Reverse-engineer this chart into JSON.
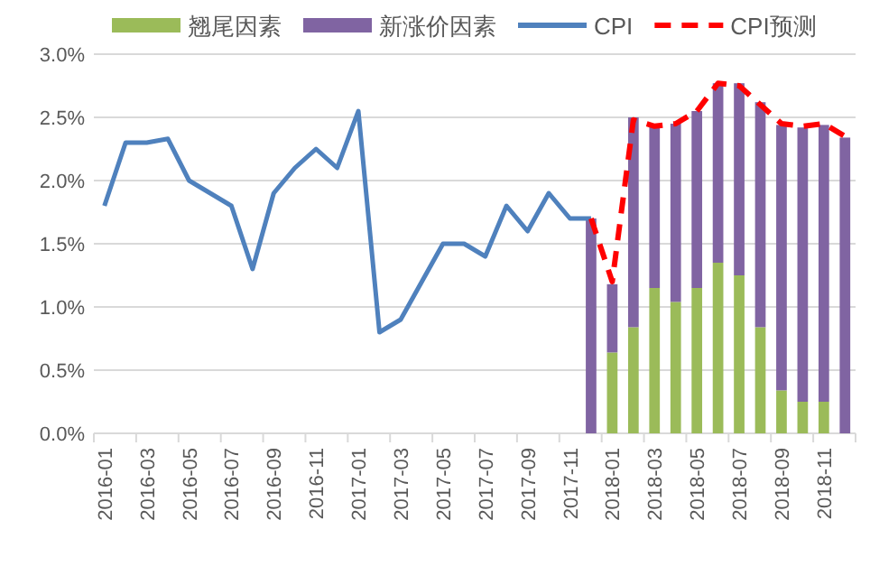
{
  "chart_data": {
    "type": "bar",
    "stacked": true,
    "grid": "y",
    "legend": "top",
    "marker": "none",
    "categories": [
      "2016-01",
      null,
      "2016-03",
      null,
      "2016-05",
      null,
      "2016-07",
      null,
      "2016-09",
      null,
      "2016-11",
      null,
      "2017-01",
      null,
      "2017-03",
      null,
      "2017-05",
      null,
      "2017-07",
      null,
      "2017-09",
      null,
      "2017-11",
      null,
      "2018-01",
      null,
      "2018-03",
      null,
      "2018-05",
      null,
      "2018-07",
      null,
      "2018-09",
      null,
      "2018-11",
      null
    ],
    "ylim": [
      0,
      3
    ],
    "yticks": [
      {
        "value": 0,
        "label": "0.0%"
      },
      {
        "value": 0.5,
        "label": "0.5%"
      },
      {
        "value": 1,
        "label": "1.0%"
      },
      {
        "value": 1.5,
        "label": "1.5%"
      },
      {
        "value": 2,
        "label": "2.0%"
      },
      {
        "value": 2.5,
        "label": "2.5%"
      },
      {
        "value": 3,
        "label": "3.0%"
      }
    ],
    "series": [
      {
        "name": "翘尾因素",
        "color": "#9bbb59",
        "values": [
          null,
          null,
          null,
          null,
          null,
          null,
          null,
          null,
          null,
          null,
          null,
          null,
          null,
          null,
          null,
          null,
          null,
          null,
          null,
          null,
          null,
          null,
          null,
          0,
          0.64,
          0.84,
          1.15,
          1.04,
          1.15,
          1.35,
          1.25,
          0.84,
          0.34,
          0.25,
          0.25,
          0
        ]
      },
      {
        "name": "新涨价因素",
        "color": "#8064a2",
        "values": [
          null,
          null,
          null,
          null,
          null,
          null,
          null,
          null,
          null,
          null,
          null,
          null,
          null,
          null,
          null,
          null,
          null,
          null,
          null,
          null,
          null,
          null,
          null,
          1.7,
          0.54,
          1.66,
          1.29,
          1.41,
          1.4,
          1.42,
          1.52,
          1.78,
          2.1,
          2.17,
          2.19,
          2.34
        ]
      },
      {
        "name": "CPI",
        "type": "line",
        "color": "#4f81bd",
        "line_style": "solid",
        "values": [
          1.8,
          2.3,
          2.3,
          2.33,
          2.0,
          1.9,
          1.8,
          1.3,
          1.9,
          2.1,
          2.25,
          2.1,
          2.55,
          0.8,
          0.9,
          1.2,
          1.5,
          1.5,
          1.4,
          1.8,
          1.6,
          1.9,
          1.7,
          1.7,
          null,
          null,
          null,
          null,
          null,
          null,
          null,
          null,
          null,
          null,
          null,
          null
        ]
      },
      {
        "name": "CPI预测",
        "type": "line",
        "color": "#ff0000",
        "line_style": "dashed",
        "values": [
          null,
          null,
          null,
          null,
          null,
          null,
          null,
          null,
          null,
          null,
          null,
          null,
          null,
          null,
          null,
          null,
          null,
          null,
          null,
          null,
          null,
          null,
          null,
          1.7,
          1.2,
          2.48,
          2.43,
          2.45,
          2.55,
          2.77,
          2.75,
          2.6,
          2.45,
          2.43,
          2.45,
          2.35
        ]
      }
    ]
  }
}
